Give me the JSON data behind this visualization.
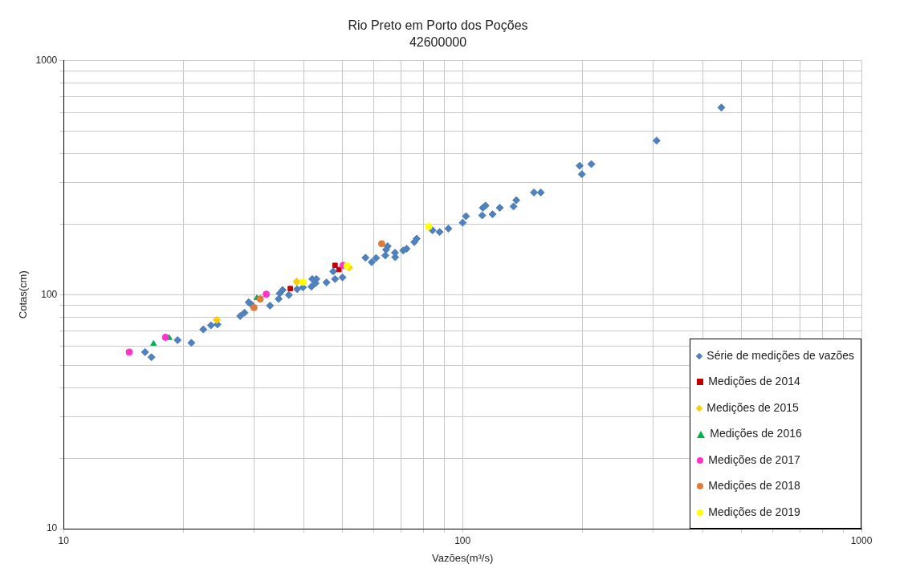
{
  "chart_data": {
    "type": "scatter",
    "title": "Rio Preto em Porto dos Poções",
    "subtitle": "42600000",
    "xlabel": "Vazões(m³/s)",
    "ylabel": "Cotas(cm)",
    "log": "xy",
    "grid": true,
    "legend": "bottom right",
    "xlim": [
      10,
      1000
    ],
    "ylim": [
      10,
      1000
    ],
    "xticks": [
      10,
      {
        "value": 20,
        "label": null
      },
      {
        "value": 30,
        "label": null
      },
      {
        "value": 40,
        "label": null
      },
      {
        "value": 50,
        "label": null
      },
      {
        "value": 60,
        "label": null
      },
      {
        "value": 70,
        "label": null
      },
      {
        "value": 80,
        "label": null
      },
      {
        "value": 90,
        "label": null
      },
      100,
      {
        "value": 200,
        "label": null
      },
      {
        "value": 300,
        "label": null
      },
      {
        "value": 400,
        "label": null
      },
      {
        "value": 500,
        "label": null
      },
      {
        "value": 600,
        "label": null
      },
      {
        "value": 700,
        "label": null
      },
      {
        "value": 800,
        "label": null
      },
      {
        "value": 900,
        "label": null
      },
      1000
    ],
    "yticks": [
      10,
      {
        "value": 20,
        "label": null
      },
      {
        "value": 30,
        "label": null
      },
      {
        "value": 40,
        "label": null
      },
      {
        "value": 50,
        "label": null
      },
      {
        "value": 60,
        "label": null
      },
      {
        "value": 70,
        "label": null
      },
      {
        "value": 80,
        "label": null
      },
      {
        "value": 90,
        "label": null
      },
      100,
      {
        "value": 200,
        "label": null
      },
      {
        "value": 300,
        "label": null
      },
      {
        "value": 400,
        "label": null
      },
      {
        "value": 500,
        "label": null
      },
      {
        "value": 600,
        "label": null
      },
      {
        "value": 700,
        "label": null
      },
      {
        "value": 800,
        "label": null
      },
      {
        "value": 900,
        "label": null
      },
      1000
    ],
    "series": [
      {
        "name": "Série de medições de vazões",
        "color": "#4f81bd",
        "marker": "diamond",
        "x": [
          16.0,
          16.6,
          19.3,
          20.9,
          22.4,
          23.4,
          24.3,
          27.7,
          28.4,
          29.1,
          29.5,
          32.9,
          34.6,
          34.8,
          35.4,
          36.7,
          38.5,
          39.8,
          41.8,
          42.0,
          43.0,
          42.8,
          45.6,
          47.9,
          50.0,
          47.4,
          57.1,
          59.2,
          60.7,
          64.0,
          64.9,
          64.3,
          67.7,
          67.8,
          71.0,
          72.4,
          75.7,
          76.7,
          84.1,
          87.6,
          92.2,
          100.1,
          102,
          112,
          112.4,
          114.2,
          118.9,
          124,
          134.2,
          136.4,
          151,
          157.1,
          196.6,
          199.1,
          210.3,
          306.6,
          445.6
        ],
        "values": [
          56.8,
          54.0,
          63.9,
          62.2,
          71.0,
          73.9,
          74.6,
          81.0,
          83.7,
          92.7,
          90.9,
          89.7,
          95.8,
          101.2,
          104.6,
          99.6,
          105.5,
          107.3,
          108.2,
          116.5,
          116.5,
          111.8,
          112.7,
          116.5,
          118.5,
          125.6,
          143.7,
          137.5,
          143.3,
          146.9,
          160.9,
          155.6,
          151.0,
          144.5,
          154.3,
          156.9,
          167.6,
          173.3,
          188.2,
          185.1,
          191.4,
          202.8,
          216.1,
          217.9,
          234.8,
          239.9,
          220.3,
          234.8,
          237.9,
          252.9,
          273.1,
          273.1,
          354.9,
          326.8,
          360.8,
          454.8,
          629.3
        ]
      },
      {
        "name": "Medições de 2014",
        "color": "#c00000",
        "marker": "square",
        "x": [
          37.0,
          47.9,
          49.0
        ],
        "values": [
          106.1,
          133.3,
          127.9
        ]
      },
      {
        "name": "Medições de 2015",
        "color": "#ffcc00",
        "marker": "diamond",
        "x": [
          24.2,
          38.4,
          51.9
        ],
        "values": [
          77.9,
          113.7,
          130.5
        ]
      },
      {
        "name": "Medições de 2016",
        "color": "#00b050",
        "marker": "triangle",
        "x": [
          16.8,
          18.4,
          30.5
        ],
        "values": [
          61.7,
          65.3,
          96.6
        ]
      },
      {
        "name": "Medições de 2017",
        "color": "#ff33cc",
        "marker": "circle",
        "x": [
          14.6,
          18.0,
          32.2,
          50.2
        ],
        "values": [
          56.8,
          65.7,
          100.4,
          133.3
        ]
      },
      {
        "name": "Medições de 2018",
        "color": "#e07b39",
        "marker": "circle",
        "x": [
          30.0,
          31.1,
          62.7
        ],
        "values": [
          88.0,
          95.8,
          164.9
        ]
      },
      {
        "name": "Medições de 2019",
        "color": "#ffff00",
        "marker": "circle",
        "x": [
          39.8,
          51.3,
          82.3
        ],
        "values": [
          113.0,
          132.7,
          195.1
        ]
      }
    ]
  }
}
